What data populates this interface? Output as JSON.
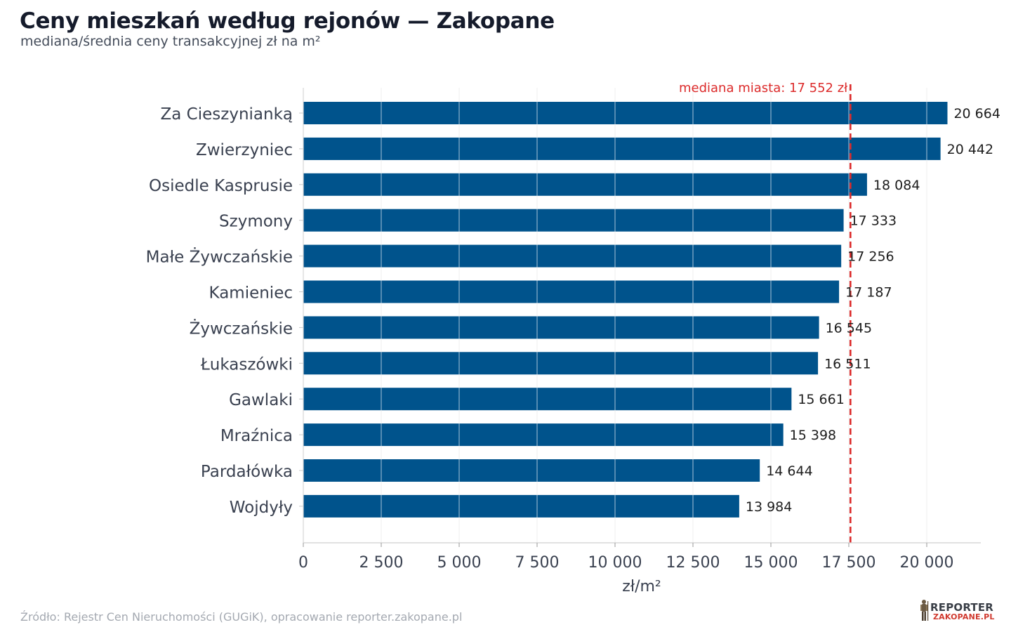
{
  "header": {
    "title": "Ceny mieszkań według rejonów — Zakopane",
    "subtitle": "mediana/średnia ceny transakcyjnej zł na m²"
  },
  "footer": {
    "source": "Źródło: Rejestr Cen Nieruchomości (GUGiK), opracowanie reporter.zakopane.pl",
    "logo_text_top": "REPORTER",
    "logo_text_bottom": "ZAKOPANE.PL"
  },
  "colors": {
    "bar": "#00538c",
    "reference_line": "#dc2b2b",
    "grid": "#e6e6e6",
    "text_dark": "#151b2b",
    "label": "#3a4150"
  },
  "chart_data": {
    "type": "bar",
    "orientation": "horizontal",
    "categories": [
      "Za Cieszynianką",
      "Zwierzyniec",
      "Osiedle Kasprusie",
      "Szymony",
      "Małe Żywczańskie",
      "Kamieniec",
      "Żywczańskie",
      "Łukaszówki",
      "Gawlaki",
      "Mraźnica",
      "Pardałówka",
      "Wojdyły"
    ],
    "values": [
      20664,
      20442,
      18084,
      17333,
      17256,
      17187,
      16545,
      16511,
      15661,
      15398,
      14644,
      13984
    ],
    "value_labels": [
      "20 664",
      "20 442",
      "18 084",
      "17 333",
      "17 256",
      "17 187",
      "16 545",
      "16 511",
      "15 661",
      "15 398",
      "14 644",
      "13 984"
    ],
    "xlabel": "zł/m²",
    "ylabel": "",
    "xlim": [
      0,
      21750
    ],
    "xticks": [
      0,
      2500,
      5000,
      7500,
      10000,
      12500,
      15000,
      17500,
      20000
    ],
    "xtick_labels": [
      "0",
      "2 500",
      "5 000",
      "7 500",
      "10 000",
      "12 500",
      "15 000",
      "17 500",
      "20 000"
    ],
    "reference_line": {
      "value": 17552,
      "label": "mediana miasta: 17 552 zł",
      "style": "dashed"
    },
    "grid": "vertical",
    "legend": "none"
  }
}
